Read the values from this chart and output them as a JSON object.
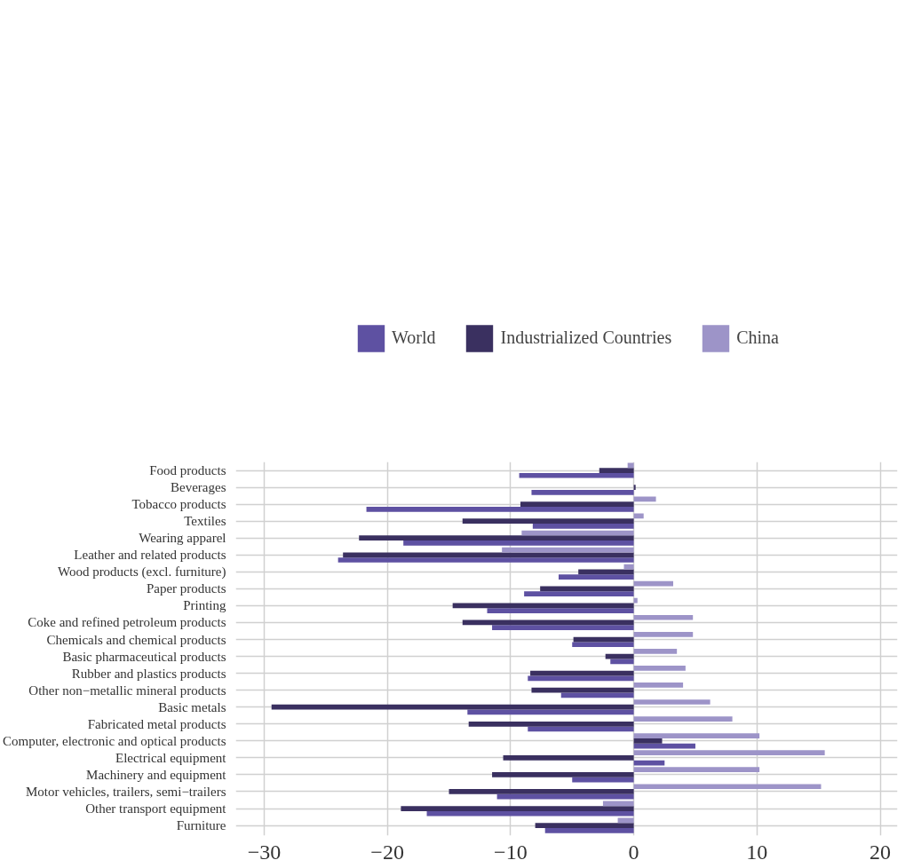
{
  "chart_data": {
    "type": "bar",
    "orientation": "horizontal",
    "categories": [
      "Food products",
      "Beverages",
      "Tobacco products",
      "Textiles",
      "Wearing apparel",
      "Leather and related products",
      "Wood products (excl. furniture)",
      "Paper products",
      "Printing",
      "Coke and refined petroleum products",
      "Chemicals and chemical products",
      "Basic pharmaceutical products",
      "Rubber and plastics products",
      "Other non−metallic mineral products",
      "Basic metals",
      "Fabricated metal products",
      "Computer, electronic and optical products",
      "Electrical equipment",
      "Machinery and equipment",
      "Motor vehicles, trailers, semi−trailers",
      "Other transport equipment",
      "Furniture"
    ],
    "series": [
      {
        "name": "World",
        "color": "#5e51a2",
        "values": [
          -9.3,
          -8.3,
          -21.7,
          -8.2,
          -18.7,
          -24.0,
          -6.1,
          -8.9,
          -11.9,
          -11.5,
          -5.0,
          -1.9,
          -8.6,
          -5.9,
          -13.5,
          -8.6,
          5.0,
          2.5,
          -5.0,
          -11.1,
          -16.8,
          -7.2
        ]
      },
      {
        "name": "Industrialized Countries",
        "color": "#3a3060",
        "values": [
          -2.8,
          0.15,
          -9.2,
          -13.9,
          -22.3,
          -23.6,
          -4.5,
          -7.6,
          -14.7,
          -13.9,
          -4.9,
          -2.3,
          -8.4,
          -8.3,
          -29.4,
          -13.4,
          2.3,
          -10.6,
          -11.5,
          -15.0,
          -18.9,
          -8.0
        ]
      },
      {
        "name": "China",
        "color": "#9d94c8",
        "values": [
          -0.5,
          0.0,
          1.8,
          0.8,
          -9.1,
          -10.7,
          -0.8,
          3.2,
          0.3,
          4.8,
          4.8,
          3.5,
          4.2,
          4.0,
          6.2,
          8.0,
          10.2,
          15.5,
          10.2,
          15.2,
          -2.5,
          -1.3
        ]
      }
    ],
    "xlim": [
      -32.3,
      21.4
    ],
    "xticks": [
      -30,
      -20,
      -10,
      0,
      10,
      20
    ],
    "grid": true,
    "legend": "top"
  }
}
